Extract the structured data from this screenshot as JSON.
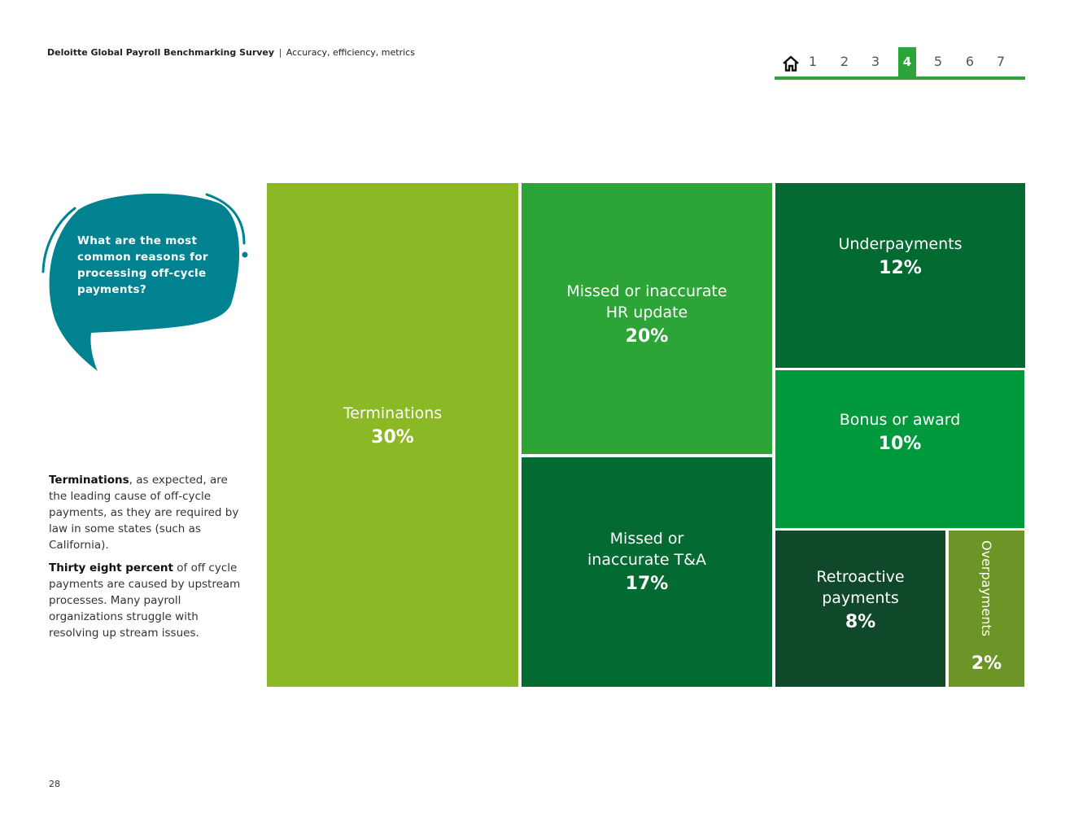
{
  "header": {
    "survey": "Deloitte Global Payroll Benchmarking Survey",
    "separator": "|",
    "subtitle": "Accuracy, efficiency, metrics"
  },
  "nav": {
    "home_icon": "home-icon",
    "items": [
      "1",
      "2",
      "3",
      "4",
      "5",
      "6",
      "7"
    ],
    "active": "4",
    "accent": "#2ca437"
  },
  "bubble": {
    "question": "What are the most common reasons for processing off-cycle payments?",
    "color": "#008290"
  },
  "notes": {
    "p1_bold": "Terminations",
    "p1_rest": ", as expected, are the leading cause of off-cycle payments, as they are required by law in some states (such as California).",
    "p2_bold": "Thirty eight percent",
    "p2_rest": " of off cycle payments are caused by upstream processes. Many payroll organizations struggle with resolving up stream issues."
  },
  "chart_data": {
    "type": "treemap",
    "items": [
      {
        "label": "Terminations",
        "value": 30,
        "display": "30%",
        "color": "#8bb825"
      },
      {
        "label": "Missed or inaccurate HR update",
        "value": 20,
        "display": "20%",
        "color": "#2ca437"
      },
      {
        "label": "Missed or inaccurate T&A",
        "value": 17,
        "display": "17%",
        "color": "#036a32"
      },
      {
        "label": "Underpayments",
        "value": 12,
        "display": "12%",
        "color": "#036a32"
      },
      {
        "label": "Bonus or award",
        "value": 10,
        "display": "10%",
        "color": "#009a3c"
      },
      {
        "label": "Retroactive payments",
        "value": 8,
        "display": "8%",
        "color": "#10482a"
      },
      {
        "label": "Overpayments",
        "value": 2,
        "display": "2%",
        "color": "#6d9427"
      }
    ]
  },
  "page_number": "28"
}
